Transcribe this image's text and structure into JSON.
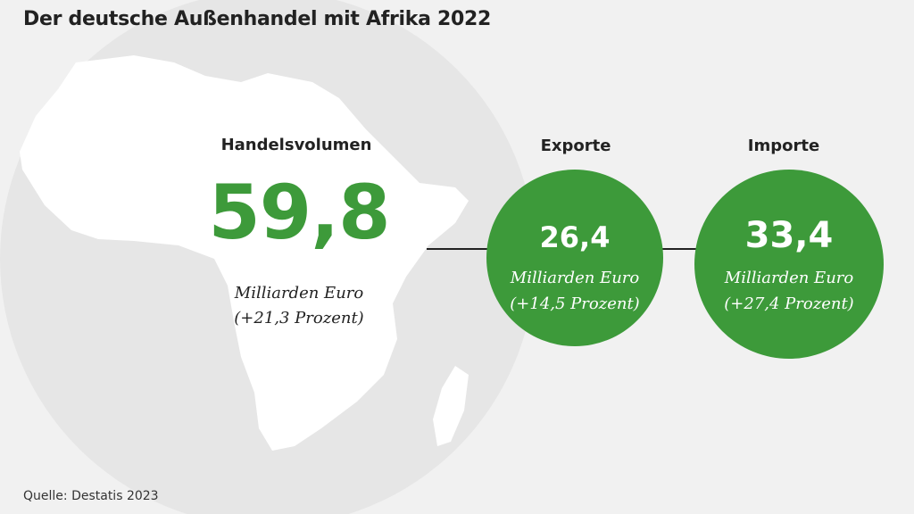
{
  "title": "Der deutsche Außenhandel mit Afrika 2022",
  "source": "Quelle: Destatis 2023",
  "colors": {
    "green": "#3d9a3a",
    "background": "#f1f1f1",
    "map_gray": "#e3e3e3",
    "text": "#222222"
  },
  "volume": {
    "heading": "Handelsvolumen",
    "value": "59,8",
    "unit": "Milliarden Euro",
    "change": "(+21,3 Prozent)"
  },
  "exports": {
    "heading": "Exporte",
    "value": "26,4",
    "unit": "Milliarden Euro",
    "change": "(+14,5 Prozent)"
  },
  "imports": {
    "heading": "Importe",
    "value": "33,4",
    "unit": "Milliarden Euro",
    "change": "(+27,4 Prozent)"
  }
}
